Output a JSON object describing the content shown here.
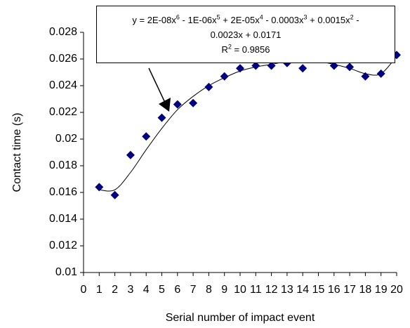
{
  "chart_data": {
    "type": "scatter",
    "x_label": "Serial number of impact event",
    "y_label": "Contact time (s)",
    "x": [
      1,
      2,
      3,
      4,
      5,
      6,
      7,
      8,
      9,
      10,
      11,
      12,
      13,
      14,
      15,
      16,
      17,
      18,
      19,
      20
    ],
    "series": [
      {
        "color": "#000080",
        "values": [
          0.0164,
          0.0158,
          0.0188,
          0.0202,
          0.0216,
          0.0226,
          0.0227,
          0.0239,
          0.0247,
          0.0253,
          0.0255,
          0.0255,
          0.0257,
          0.0253,
          0.026,
          0.0255,
          0.0254,
          0.0247,
          0.0249,
          0.0263
        ]
      }
    ],
    "trendline": {
      "color": "#000000",
      "values": [
        0.0162,
        0.0162,
        0.0175,
        0.0192,
        0.0208,
        0.0222,
        0.0232,
        0.024,
        0.0246,
        0.0251,
        0.0254,
        0.0256,
        0.0258,
        0.0258,
        0.0258,
        0.0256,
        0.0253,
        0.0249,
        0.0249,
        0.0262
      ]
    },
    "annotation": [
      [
        "y = 2E-08x",
        "6",
        " - 1E-06x",
        "5",
        " + 2E-05x",
        "4",
        " - 0.0003x",
        "3",
        " + 0.0015x",
        "2",
        " -"
      ],
      [
        "0.0023x + 0.0171"
      ],
      [
        "R",
        "2",
        " = 0.9856"
      ]
    ],
    "xlim": [
      0,
      20
    ],
    "xticks": [
      0,
      1,
      2,
      3,
      4,
      5,
      6,
      7,
      8,
      9,
      10,
      11,
      12,
      13,
      14,
      15,
      16,
      17,
      18,
      19,
      20
    ],
    "ylim": [
      0.01,
      0.028
    ],
    "yticks": [
      0.01,
      0.012,
      0.014,
      0.016,
      0.018,
      0.02,
      0.022,
      0.024,
      0.026,
      0.028
    ],
    "grid": false
  }
}
